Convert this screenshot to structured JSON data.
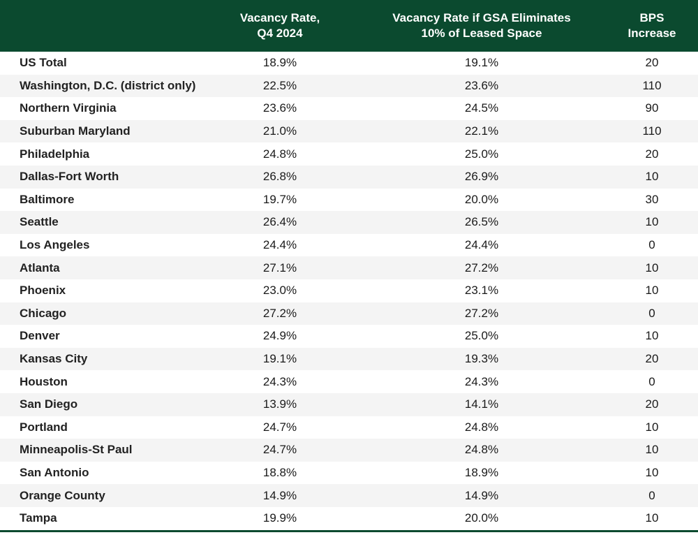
{
  "chart_data": {
    "type": "table",
    "columns": [
      {
        "lines": [
          ""
        ]
      },
      {
        "lines": [
          "Vacancy Rate,",
          "Q4 2024"
        ]
      },
      {
        "lines": [
          "Vacancy Rate if GSA Eliminates",
          "10% of Leased Space"
        ]
      },
      {
        "lines": [
          "BPS",
          "Increase"
        ]
      }
    ],
    "rows": [
      [
        "US Total",
        "18.9%",
        "19.1%",
        "20"
      ],
      [
        "Washington, D.C. (district only)",
        "22.5%",
        "23.6%",
        "110"
      ],
      [
        "Northern Virginia",
        "23.6%",
        "24.5%",
        "90"
      ],
      [
        "Suburban Maryland",
        "21.0%",
        "22.1%",
        "110"
      ],
      [
        "Philadelphia",
        "24.8%",
        "25.0%",
        "20"
      ],
      [
        "Dallas-Fort Worth",
        "26.8%",
        "26.9%",
        "10"
      ],
      [
        "Baltimore",
        "19.7%",
        "20.0%",
        "30"
      ],
      [
        "Seattle",
        "26.4%",
        "26.5%",
        "10"
      ],
      [
        "Los Angeles",
        "24.4%",
        "24.4%",
        "0"
      ],
      [
        "Atlanta",
        "27.1%",
        "27.2%",
        "10"
      ],
      [
        "Phoenix",
        "23.0%",
        "23.1%",
        "10"
      ],
      [
        "Chicago",
        "27.2%",
        "27.2%",
        "0"
      ],
      [
        "Denver",
        "24.9%",
        "25.0%",
        "10"
      ],
      [
        "Kansas City",
        "19.1%",
        "19.3%",
        "20"
      ],
      [
        "Houston",
        "24.3%",
        "24.3%",
        "0"
      ],
      [
        "San Diego",
        "13.9%",
        "14.1%",
        "20"
      ],
      [
        "Portland",
        "24.7%",
        "24.8%",
        "10"
      ],
      [
        "Minneapolis-St Paul",
        "24.7%",
        "24.8%",
        "10"
      ],
      [
        "San Antonio",
        "18.8%",
        "18.9%",
        "10"
      ],
      [
        "Orange County",
        "14.9%",
        "14.9%",
        "0"
      ],
      [
        "Tampa",
        "19.9%",
        "20.0%",
        "10"
      ]
    ]
  },
  "colors": {
    "header_bg": "#0b4a2f",
    "header_text": "#ffffff",
    "row_alt": "#f4f4f4",
    "row": "#ffffff"
  }
}
